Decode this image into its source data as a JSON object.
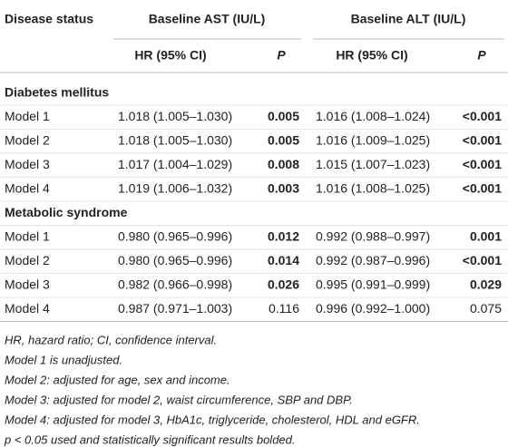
{
  "header": {
    "disease_status": "Disease status",
    "ast": "Baseline AST (IU/L)",
    "alt": "Baseline ALT (IU/L)",
    "subheaders": [
      "HR (95% CI)",
      "P",
      "HR (95% CI)",
      "P"
    ]
  },
  "sections": [
    {
      "title": "Diabetes mellitus",
      "rows": [
        {
          "label": "Model 1",
          "cells": [
            "1.018 (1.005–1.030)",
            "0.005",
            "1.016 (1.008–1.024)",
            "<0.001"
          ],
          "bold": [
            false,
            true,
            false,
            true
          ]
        },
        {
          "label": "Model 2",
          "cells": [
            "1.018 (1.005–1.030)",
            "0.005",
            "1.016 (1.009–1.025)",
            "<0.001"
          ],
          "bold": [
            false,
            true,
            false,
            true
          ]
        },
        {
          "label": "Model 3",
          "cells": [
            "1.017 (1.004–1.029)",
            "0.008",
            "1.015 (1.007–1.023)",
            "<0.001"
          ],
          "bold": [
            false,
            true,
            false,
            true
          ]
        },
        {
          "label": "Model 4",
          "cells": [
            "1.019 (1.006–1.032)",
            "0.003",
            "1.016 (1.008–1.025)",
            "<0.001"
          ],
          "bold": [
            false,
            true,
            false,
            true
          ]
        }
      ]
    },
    {
      "title": "Metabolic syndrome",
      "rows": [
        {
          "label": "Model 1",
          "cells": [
            "0.980 (0.965–0.996)",
            "0.012",
            "0.992 (0.988–0.997)",
            "0.001"
          ],
          "bold": [
            false,
            true,
            false,
            true
          ]
        },
        {
          "label": "Model 2",
          "cells": [
            "0.980 (0.965–0.996)",
            "0.014",
            "0.992 (0.987–0.996)",
            "<0.001"
          ],
          "bold": [
            false,
            true,
            false,
            true
          ]
        },
        {
          "label": "Model 3",
          "cells": [
            "0.982 (0.966–0.998)",
            "0.026",
            "0.995 (0.991–0.999)",
            "0.029"
          ],
          "bold": [
            false,
            true,
            false,
            true
          ]
        },
        {
          "label": "Model 4",
          "cells": [
            "0.987 (0.971–1.003)",
            "0.116",
            "0.996 (0.992–1.000)",
            "0.075"
          ],
          "bold": [
            false,
            false,
            false,
            false
          ]
        }
      ]
    }
  ],
  "footnotes": [
    "HR, hazard ratio; CI, confidence interval.",
    "Model 1 is unadjusted.",
    "Model 2: adjusted for age, sex and income.",
    "Model 3: adjusted for model 2, waist circumference, SBP and DBP.",
    "Model 4: adjusted for model 3, HbA1c, triglyceride, cholesterol, HDL and eGFR.",
    "p < 0.05 used and statistically significant results bolded."
  ]
}
